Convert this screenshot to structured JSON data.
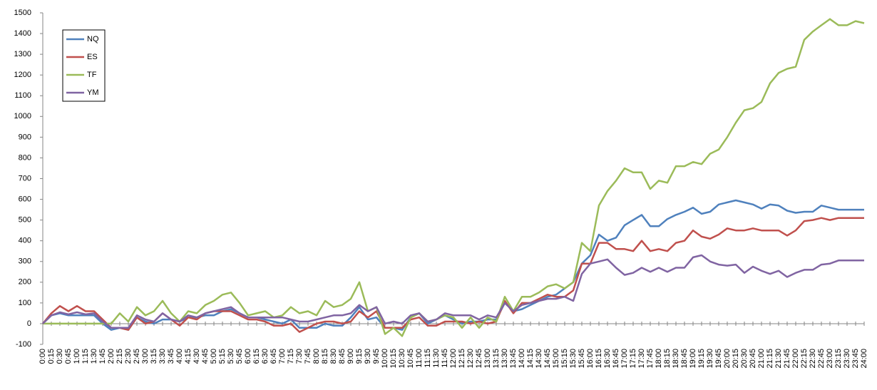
{
  "chart_data": {
    "type": "line",
    "categories": [
      "0:00",
      "0:15",
      "0:30",
      "0:45",
      "1:00",
      "1:15",
      "1:30",
      "1:45",
      "2:00",
      "2:15",
      "2:30",
      "2:45",
      "3:00",
      "3:15",
      "3:30",
      "3:45",
      "4:00",
      "4:15",
      "4:30",
      "4:45",
      "5:00",
      "5:15",
      "5:30",
      "5:45",
      "6:00",
      "6:15",
      "6:30",
      "6:45",
      "7:00",
      "7:15",
      "7:30",
      "7:45",
      "8:00",
      "8:15",
      "8:30",
      "8:45",
      "9:00",
      "9:15",
      "9:30",
      "9:45",
      "10:00",
      "10:15",
      "10:30",
      "10:45",
      "11:00",
      "11:15",
      "11:30",
      "11:45",
      "12:00",
      "12:15",
      "12:30",
      "12:45",
      "13:00",
      "13:15",
      "13:30",
      "13:45",
      "14:00",
      "14:15",
      "14:30",
      "14:45",
      "15:00",
      "15:15",
      "15:30",
      "15:45",
      "16:00",
      "16:15",
      "16:30",
      "16:45",
      "17:00",
      "17:15",
      "17:30",
      "17:45",
      "18:00",
      "18:15",
      "18:30",
      "18:45",
      "19:00",
      "19:15",
      "19:30",
      "19:45",
      "20:00",
      "20:15",
      "20:30",
      "20:45",
      "21:00",
      "21:15",
      "21:30",
      "21:45",
      "22:00",
      "22:15",
      "22:30",
      "22:45",
      "23:00",
      "23:15",
      "23:30",
      "23:45",
      "24:00"
    ],
    "series": [
      {
        "name": "NQ",
        "color": "#4f81bd",
        "values": [
          0,
          40,
          50,
          40,
          40,
          40,
          40,
          0,
          -30,
          -20,
          -30,
          30,
          10,
          0,
          20,
          20,
          10,
          30,
          30,
          40,
          40,
          60,
          70,
          50,
          30,
          30,
          20,
          10,
          0,
          20,
          -20,
          -20,
          -20,
          0,
          -10,
          -10,
          30,
          80,
          20,
          30,
          -20,
          -20,
          -30,
          30,
          50,
          0,
          20,
          40,
          20,
          0,
          10,
          10,
          20,
          20,
          100,
          60,
          70,
          90,
          110,
          130,
          140,
          170,
          200,
          290,
          330,
          430,
          400,
          415,
          475,
          500,
          525,
          470,
          470,
          505,
          525,
          540,
          560,
          530,
          540,
          575,
          585,
          595,
          585,
          575,
          555,
          575,
          570,
          545,
          535,
          540,
          540,
          570,
          560,
          550,
          550,
          550,
          550
        ]
      },
      {
        "name": "ES",
        "color": "#c0504d",
        "values": [
          0,
          50,
          85,
          60,
          85,
          60,
          60,
          20,
          -20,
          -20,
          -30,
          30,
          0,
          10,
          50,
          20,
          -10,
          30,
          20,
          50,
          60,
          60,
          60,
          40,
          20,
          20,
          10,
          -10,
          -10,
          0,
          -40,
          -20,
          0,
          10,
          10,
          0,
          10,
          60,
          30,
          60,
          -20,
          -20,
          -20,
          20,
          30,
          -10,
          -10,
          10,
          10,
          10,
          0,
          10,
          0,
          10,
          110,
          50,
          100,
          100,
          120,
          140,
          130,
          130,
          160,
          290,
          290,
          390,
          390,
          360,
          360,
          350,
          400,
          350,
          360,
          350,
          390,
          400,
          450,
          420,
          410,
          430,
          460,
          450,
          450,
          460,
          450,
          450,
          450,
          425,
          450,
          495,
          500,
          510,
          500,
          510,
          510,
          510,
          510
        ]
      },
      {
        "name": "TF",
        "color": "#9bbb59",
        "values": [
          0,
          0,
          0,
          0,
          0,
          0,
          0,
          0,
          0,
          50,
          10,
          80,
          40,
          60,
          110,
          50,
          10,
          60,
          50,
          90,
          110,
          140,
          150,
          100,
          40,
          50,
          60,
          30,
          40,
          80,
          50,
          60,
          40,
          110,
          80,
          90,
          120,
          200,
          60,
          80,
          -50,
          -20,
          -60,
          30,
          50,
          10,
          20,
          40,
          30,
          -20,
          30,
          -20,
          30,
          10,
          130,
          60,
          130,
          130,
          150,
          180,
          190,
          170,
          200,
          390,
          350,
          570,
          640,
          690,
          750,
          730,
          730,
          650,
          690,
          680,
          760,
          760,
          780,
          770,
          820,
          840,
          900,
          970,
          1030,
          1040,
          1070,
          1160,
          1210,
          1230,
          1240,
          1370,
          1410,
          1440,
          1470,
          1440,
          1440,
          1460,
          1450
        ]
      },
      {
        "name": "YM",
        "color": "#8064a2",
        "values": [
          0,
          40,
          55,
          45,
          55,
          45,
          50,
          10,
          -20,
          -20,
          -20,
          40,
          20,
          10,
          50,
          20,
          10,
          40,
          30,
          50,
          60,
          70,
          80,
          50,
          30,
          30,
          30,
          30,
          30,
          20,
          10,
          10,
          20,
          30,
          40,
          40,
          50,
          90,
          60,
          80,
          0,
          10,
          0,
          40,
          50,
          10,
          20,
          50,
          40,
          40,
          40,
          20,
          40,
          30,
          100,
          60,
          90,
          100,
          110,
          120,
          120,
          130,
          110,
          240,
          290,
          300,
          310,
          270,
          235,
          245,
          270,
          250,
          270,
          250,
          270,
          270,
          320,
          330,
          300,
          285,
          280,
          285,
          245,
          275,
          255,
          240,
          255,
          225,
          245,
          260,
          260,
          285,
          290,
          305,
          305,
          305,
          305
        ]
      }
    ],
    "ylim": [
      -100,
      1500
    ],
    "yticks": [
      -100,
      0,
      100,
      200,
      300,
      400,
      500,
      600,
      700,
      800,
      900,
      1000,
      1100,
      1200,
      1300,
      1400,
      1500
    ],
    "legend": "top-left"
  }
}
